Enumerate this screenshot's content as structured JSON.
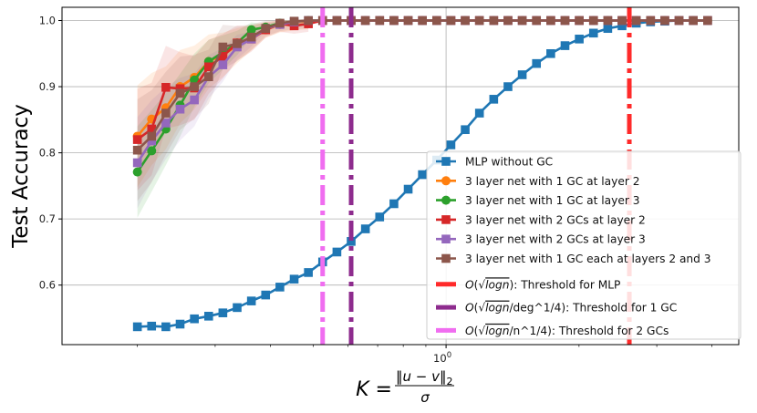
{
  "chart_data": {
    "type": "line",
    "xscale": "log",
    "xlabel": "K = ‖u − v‖₂ / σ",
    "xlabel_parts": {
      "lhs": "K =",
      "numerator": "‖u − v‖",
      "numerator_sub": "2",
      "denominator": "σ"
    },
    "ylabel": "Test Accuracy",
    "xlim": [
      0.135,
      4.6
    ],
    "ylim": [
      0.51,
      1.02
    ],
    "x_ticks": [
      {
        "value": 1.0,
        "label": "10",
        "exponent": "0"
      }
    ],
    "y_ticks": [
      0.6,
      0.7,
      0.8,
      0.9,
      1.0
    ],
    "y_tick_labels": [
      "0.6",
      "0.7",
      "0.8",
      "0.9",
      "1.0"
    ],
    "grid": true,
    "legend_position": "lower-right",
    "series": [
      {
        "name": "MLP without GC",
        "color": "#1f77b4",
        "marker": "square",
        "x": [
          0.2,
          0.2154,
          0.232,
          0.2499,
          0.2692,
          0.29,
          0.3123,
          0.3364,
          0.3624,
          0.3903,
          0.4204,
          0.4529,
          0.4878,
          0.5254,
          0.566,
          0.6096,
          0.6567,
          0.7073,
          0.7619,
          0.8207,
          0.884,
          0.9522,
          1.0257,
          1.1049,
          1.1901,
          1.282,
          1.3809,
          1.4875,
          1.6022,
          1.7259,
          1.8591,
          2.0025,
          2.1571,
          2.3235,
          2.5028,
          2.696,
          2.904,
          3.1281,
          3.3695,
          3.6296,
          3.9097
        ],
        "values": [
          0.537,
          0.538,
          0.537,
          0.541,
          0.549,
          0.553,
          0.558,
          0.566,
          0.576,
          0.585,
          0.597,
          0.609,
          0.619,
          0.635,
          0.65,
          0.666,
          0.685,
          0.703,
          0.723,
          0.745,
          0.767,
          0.789,
          0.812,
          0.835,
          0.86,
          0.881,
          0.9,
          0.918,
          0.935,
          0.95,
          0.962,
          0.972,
          0.981,
          0.988,
          0.992,
          0.996,
          0.998,
          0.999,
          1.0,
          1.0,
          1.0
        ]
      },
      {
        "name": "3 layer net with 1 GC at layer 2",
        "color": "#ff7f0e",
        "marker": "circle",
        "x": [
          0.2,
          0.2154,
          0.232,
          0.2499,
          0.2692,
          0.29,
          0.3123,
          0.3364,
          0.3624,
          0.3903,
          0.4204,
          0.4529,
          0.4878,
          0.5254,
          0.566,
          0.6096,
          0.6567,
          0.7073,
          0.7619,
          0.8207,
          0.884,
          0.9522,
          1.0257,
          1.1049,
          1.1901,
          1.282,
          1.3809,
          1.4875,
          1.6022,
          1.7259,
          1.8591,
          2.0025,
          2.1571,
          2.3235,
          2.5028,
          2.696,
          2.904,
          3.1281,
          3.3695,
          3.6296,
          3.9097
        ],
        "values": [
          0.825,
          0.851,
          0.868,
          0.9,
          0.914,
          0.938,
          0.948,
          0.962,
          0.974,
          0.986,
          0.994,
          0.997,
          0.999,
          1.0,
          1.0,
          1.0,
          1.0,
          1.0,
          1.0,
          1.0,
          1.0,
          1.0,
          1.0,
          1.0,
          1.0,
          1.0,
          1.0,
          1.0,
          1.0,
          1.0,
          1.0,
          1.0,
          1.0,
          1.0,
          1.0,
          1.0,
          1.0,
          1.0,
          1.0,
          1.0,
          1.0
        ]
      },
      {
        "name": "3 layer net with 1 GC at layer 3",
        "color": "#2ca02c",
        "marker": "circle",
        "x": [
          0.2,
          0.2154,
          0.232,
          0.2499,
          0.2692,
          0.29,
          0.3123,
          0.3364,
          0.3624,
          0.3903,
          0.4204,
          0.4529,
          0.4878,
          0.5254,
          0.566,
          0.6096,
          0.6567,
          0.7073,
          0.7619,
          0.8207,
          0.884,
          0.9522,
          1.0257,
          1.1049,
          1.1901,
          1.282,
          1.3809,
          1.4875,
          1.6022,
          1.7259,
          1.8591,
          2.0025,
          2.1571,
          2.3235,
          2.5028,
          2.696,
          2.904,
          3.1281,
          3.3695,
          3.6296,
          3.9097
        ],
        "values": [
          0.771,
          0.803,
          0.836,
          0.872,
          0.91,
          0.938,
          0.952,
          0.966,
          0.986,
          0.99,
          0.996,
          0.998,
          1.0,
          1.0,
          1.0,
          1.0,
          1.0,
          1.0,
          1.0,
          1.0,
          1.0,
          1.0,
          1.0,
          1.0,
          1.0,
          1.0,
          1.0,
          1.0,
          1.0,
          1.0,
          1.0,
          1.0,
          1.0,
          1.0,
          1.0,
          1.0,
          1.0,
          1.0,
          1.0,
          1.0,
          1.0
        ]
      },
      {
        "name": "3 layer net with 2 GCs at layer 2",
        "color": "#d62728",
        "marker": "square",
        "x": [
          0.2,
          0.2154,
          0.232,
          0.2499,
          0.2692,
          0.29,
          0.3123,
          0.3364,
          0.3624,
          0.3903,
          0.4204,
          0.4529,
          0.4878,
          0.5254,
          0.566,
          0.6096,
          0.6567,
          0.7073,
          0.7619,
          0.8207,
          0.884,
          0.9522,
          1.0257,
          1.1049,
          1.1901,
          1.282,
          1.3809,
          1.4875,
          1.6022,
          1.7259,
          1.8591,
          2.0025,
          2.1571,
          2.3235,
          2.5028,
          2.696,
          2.904,
          3.1281,
          3.3695,
          3.6296,
          3.9097
        ],
        "values": [
          0.82,
          0.836,
          0.899,
          0.897,
          0.898,
          0.93,
          0.946,
          0.966,
          0.972,
          0.986,
          0.995,
          0.992,
          0.995,
          1.0,
          1.0,
          1.0,
          1.0,
          1.0,
          1.0,
          1.0,
          1.0,
          1.0,
          1.0,
          1.0,
          1.0,
          1.0,
          1.0,
          1.0,
          1.0,
          1.0,
          1.0,
          1.0,
          1.0,
          1.0,
          1.0,
          1.0,
          1.0,
          1.0,
          1.0,
          1.0,
          1.0
        ]
      },
      {
        "name": "3 layer net with 2 GCs at layer 3",
        "color": "#9467bd",
        "marker": "square",
        "x": [
          0.2,
          0.2154,
          0.232,
          0.2499,
          0.2692,
          0.29,
          0.3123,
          0.3364,
          0.3624,
          0.3903,
          0.4204,
          0.4529,
          0.4878,
          0.5254,
          0.566,
          0.6096,
          0.6567,
          0.7073,
          0.7619,
          0.8207,
          0.884,
          0.9522,
          1.0257,
          1.1049,
          1.1901,
          1.282,
          1.3809,
          1.4875,
          1.6022,
          1.7259,
          1.8591,
          2.0025,
          2.1571,
          2.3235,
          2.5028,
          2.696,
          2.904,
          3.1281,
          3.3695,
          3.6296,
          3.9097
        ],
        "values": [
          0.785,
          0.818,
          0.845,
          0.866,
          0.88,
          0.915,
          0.933,
          0.96,
          0.972,
          0.988,
          0.994,
          0.998,
          1.0,
          1.0,
          1.0,
          1.0,
          1.0,
          1.0,
          1.0,
          1.0,
          1.0,
          1.0,
          1.0,
          1.0,
          1.0,
          1.0,
          1.0,
          1.0,
          1.0,
          1.0,
          1.0,
          1.0,
          1.0,
          1.0,
          1.0,
          1.0,
          1.0,
          1.0,
          1.0,
          1.0,
          1.0
        ]
      },
      {
        "name": "3 layer net with 1 GC each at layers 2 and 3",
        "color": "#8c564b",
        "marker": "square",
        "x": [
          0.2,
          0.2154,
          0.232,
          0.2499,
          0.2692,
          0.29,
          0.3123,
          0.3364,
          0.3624,
          0.3903,
          0.4204,
          0.4529,
          0.4878,
          0.5254,
          0.566,
          0.6096,
          0.6567,
          0.7073,
          0.7619,
          0.8207,
          0.884,
          0.9522,
          1.0257,
          1.1049,
          1.1901,
          1.282,
          1.3809,
          1.4875,
          1.6022,
          1.7259,
          1.8591,
          2.0025,
          2.1571,
          2.3235,
          2.5028,
          2.696,
          2.904,
          3.1281,
          3.3695,
          3.6296,
          3.9097
        ],
        "values": [
          0.804,
          0.825,
          0.86,
          0.89,
          0.9,
          0.915,
          0.96,
          0.965,
          0.975,
          0.988,
          0.996,
          0.999,
          1.0,
          1.0,
          1.0,
          1.0,
          1.0,
          1.0,
          1.0,
          1.0,
          1.0,
          1.0,
          1.0,
          1.0,
          1.0,
          1.0,
          1.0,
          1.0,
          1.0,
          1.0,
          1.0,
          1.0,
          1.0,
          1.0,
          1.0,
          1.0,
          1.0,
          1.0,
          1.0,
          1.0,
          1.0
        ]
      }
    ],
    "thresholds": [
      {
        "name": "Threshold for MLP",
        "legend_prefix": "O(",
        "legend_sqrt": "logn",
        "legend_mid": "",
        "legend_suffix": "): Threshold for MLP",
        "x": 2.6,
        "color": "#ff2a2a"
      },
      {
        "name": "Threshold for 1 GC",
        "legend_prefix": "O(",
        "legend_sqrt": "logn",
        "legend_mid": "/deg^1/4",
        "legend_suffix": "): Threshold for 1 GC",
        "x": 0.6096,
        "color": "#8e2c8e"
      },
      {
        "name": "Threshold for 2 GCs",
        "legend_prefix": "O(",
        "legend_sqrt": "logn",
        "legend_mid": "/n^1/4",
        "legend_suffix": "): Threshold for 2 GCs",
        "x": 0.5254,
        "color": "#f06df0"
      }
    ]
  }
}
